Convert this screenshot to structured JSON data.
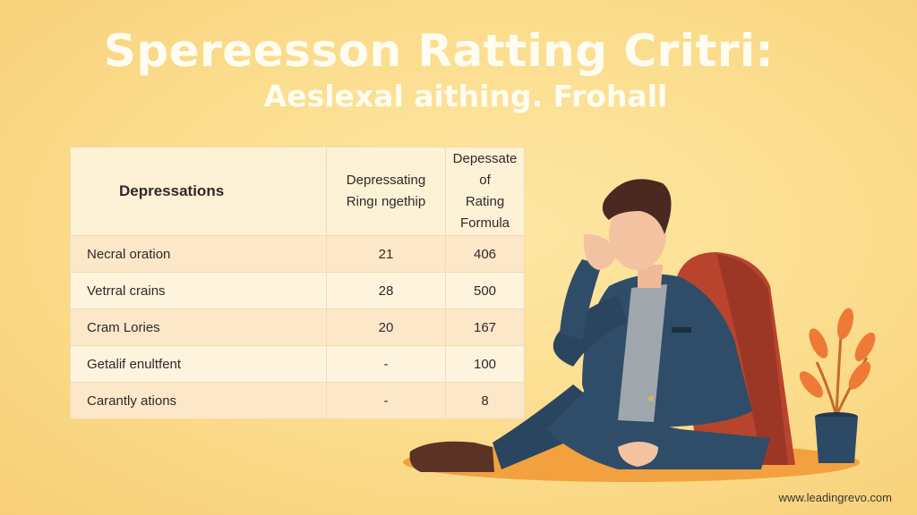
{
  "header": {
    "title": "Spereesson Ratting Critri:",
    "subtitle": "Aeslexal aithing. Frohall"
  },
  "table": {
    "headers": [
      {
        "line1": "Depressations",
        "line2": ""
      },
      {
        "line1": "Depressating",
        "line2": "Ringı ngethip"
      },
      {
        "line1": "Depessate of",
        "line2": "Rating Formula"
      }
    ],
    "rows": [
      {
        "label": "Necral oration",
        "col2": "21",
        "col3": "406"
      },
      {
        "label": "Vetrral crains",
        "col2": "28",
        "col3": "500"
      },
      {
        "label": "Cram Lories",
        "col2": "20",
        "col3": "167"
      },
      {
        "label": "Getalif enultfent",
        "col2": "-",
        "col3": "100"
      },
      {
        "label": "Carantly ations",
        "col2": "-",
        "col3": "8"
      }
    ]
  },
  "footer": {
    "url": "www.leadingrevo.com"
  },
  "colors": {
    "background": "#fbdc8c",
    "jacket": "#2f4d68",
    "chair": "#b8442e",
    "leaves": "#ee7a36",
    "pot": "#2c4a66"
  }
}
